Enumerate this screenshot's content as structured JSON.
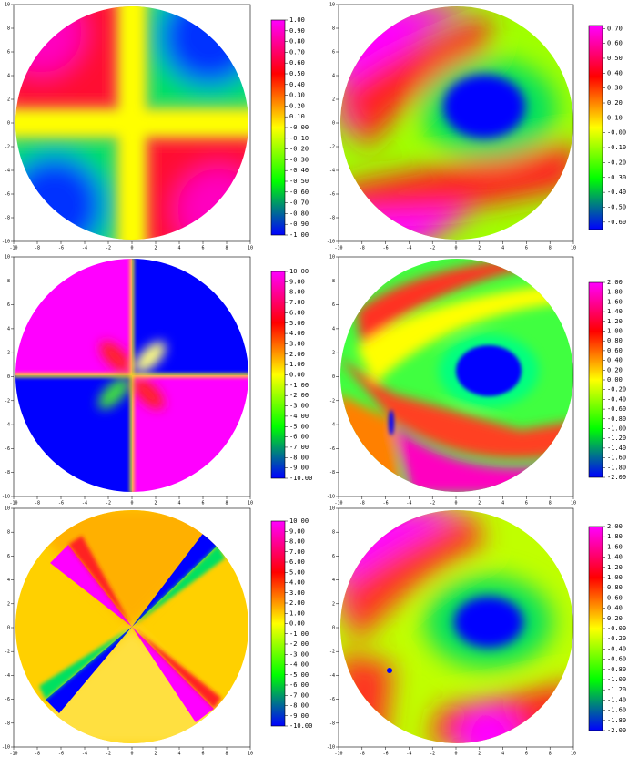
{
  "chart_data": [
    {
      "type": "heatmap",
      "xlim": [
        -10,
        10
      ],
      "ylim": [
        -10,
        10
      ],
      "xticks": [
        -10,
        -8,
        -6,
        -4,
        -2,
        0,
        2,
        4,
        6,
        8,
        10
      ],
      "yticks": [
        -10,
        -8,
        -6,
        -4,
        -2,
        0,
        2,
        4,
        6,
        8,
        10
      ],
      "colormap": [
        "#0000ff",
        "#00ff00",
        "#ffff00",
        "#ff0000",
        "#ff00ff"
      ],
      "clim": [
        -1,
        1
      ],
      "cbar_ticks": [
        {
          "value": 1,
          "label": "1.00"
        },
        {
          "value": 0.9,
          "label": "0.90"
        },
        {
          "value": 0.8,
          "label": "0.80"
        },
        {
          "value": 0.7,
          "label": "0.70"
        },
        {
          "value": 0.6,
          "label": "0.60"
        },
        {
          "value": 0.5,
          "label": "0.50"
        },
        {
          "value": 0.4,
          "label": "0.40"
        },
        {
          "value": 0.3,
          "label": "0.30"
        },
        {
          "value": 0.2,
          "label": "0.20"
        },
        {
          "value": 0.1,
          "label": "0.10"
        },
        {
          "value": 0,
          "label": "-0.00"
        },
        {
          "value": -0.1,
          "label": "-0.10"
        },
        {
          "value": -0.2,
          "label": "-0.20"
        },
        {
          "value": -0.3,
          "label": "-0.30"
        },
        {
          "value": -0.4,
          "label": "-0.40"
        },
        {
          "value": -0.5,
          "label": "-0.50"
        },
        {
          "value": -0.6,
          "label": "-0.60"
        },
        {
          "value": -0.7,
          "label": "-0.70"
        },
        {
          "value": -0.8,
          "label": "-0.80"
        },
        {
          "value": -0.9,
          "label": "-0.90"
        },
        {
          "value": -1,
          "label": "-1.00"
        }
      ]
    },
    {
      "type": "heatmap",
      "xlim": [
        -10,
        10
      ],
      "ylim": [
        -10,
        10
      ],
      "xticks": [
        -10,
        -8,
        -6,
        -4,
        -2,
        0,
        2,
        4,
        6,
        8,
        10
      ],
      "yticks": [
        -10,
        -8,
        -6,
        -4,
        -2,
        0,
        2,
        4,
        6,
        8,
        10
      ],
      "colormap": [
        "#0000ff",
        "#00ff00",
        "#ffff00",
        "#ff0000",
        "#ff00ff"
      ],
      "clim": [
        -0.65,
        0.72
      ],
      "cbar_ticks": [
        {
          "value": 0.7,
          "label": "0.70"
        },
        {
          "value": 0.6,
          "label": "0.60"
        },
        {
          "value": 0.5,
          "label": "0.50"
        },
        {
          "value": 0.4,
          "label": "0.40"
        },
        {
          "value": 0.3,
          "label": "0.30"
        },
        {
          "value": 0.2,
          "label": "0.20"
        },
        {
          "value": 0.1,
          "label": "0.10"
        },
        {
          "value": 0,
          "label": "-0.00"
        },
        {
          "value": -0.1,
          "label": "-0.10"
        },
        {
          "value": -0.2,
          "label": "-0.20"
        },
        {
          "value": -0.3,
          "label": "-0.30"
        },
        {
          "value": -0.4,
          "label": "-0.40"
        },
        {
          "value": -0.5,
          "label": "-0.50"
        },
        {
          "value": -0.6,
          "label": "-0.60"
        }
      ]
    },
    {
      "type": "heatmap",
      "xlim": [
        -10,
        10
      ],
      "ylim": [
        -10,
        10
      ],
      "xticks": [
        -10,
        -8,
        -6,
        -4,
        -2,
        0,
        2,
        4,
        6,
        8,
        10
      ],
      "yticks": [
        -10,
        -8,
        -6,
        -4,
        -2,
        0,
        2,
        4,
        6,
        8,
        10
      ],
      "colormap": [
        "#0000ff",
        "#00ff00",
        "#ffff00",
        "#ff0000",
        "#ff00ff"
      ],
      "clim": [
        -10,
        10
      ],
      "cbar_ticks": [
        {
          "value": 10,
          "label": "10.00"
        },
        {
          "value": 9,
          "label": "9.00"
        },
        {
          "value": 8,
          "label": "8.00"
        },
        {
          "value": 7,
          "label": "7.00"
        },
        {
          "value": 6,
          "label": "6.00"
        },
        {
          "value": 5,
          "label": "5.00"
        },
        {
          "value": 4,
          "label": "4.00"
        },
        {
          "value": 3,
          "label": "3.00"
        },
        {
          "value": 2,
          "label": "2.00"
        },
        {
          "value": 1,
          "label": "1.00"
        },
        {
          "value": 0,
          "label": "0.00"
        },
        {
          "value": -1,
          "label": "-1.00"
        },
        {
          "value": -2,
          "label": "-2.00"
        },
        {
          "value": -3,
          "label": "-3.00"
        },
        {
          "value": -4,
          "label": "-4.00"
        },
        {
          "value": -5,
          "label": "-5.00"
        },
        {
          "value": -6,
          "label": "-6.00"
        },
        {
          "value": -7,
          "label": "-7.00"
        },
        {
          "value": -8,
          "label": "-8.00"
        },
        {
          "value": -9,
          "label": "-9.00"
        },
        {
          "value": -10,
          "label": "-10.00"
        }
      ]
    },
    {
      "type": "heatmap",
      "xlim": [
        -10,
        10
      ],
      "ylim": [
        -10,
        10
      ],
      "xticks": [
        -10,
        -8,
        -6,
        -4,
        -2,
        0,
        2,
        4,
        6,
        8,
        10
      ],
      "yticks": [
        -10,
        -8,
        -6,
        -4,
        -2,
        0,
        2,
        4,
        6,
        8,
        10
      ],
      "colormap": [
        "#0000ff",
        "#00ff00",
        "#ffff00",
        "#ff0000",
        "#ff00ff"
      ],
      "clim": [
        -2,
        2
      ],
      "cbar_ticks": [
        {
          "value": 2,
          "label": "2.00"
        },
        {
          "value": 1.8,
          "label": "1.80"
        },
        {
          "value": 1.6,
          "label": "1.60"
        },
        {
          "value": 1.4,
          "label": "1.40"
        },
        {
          "value": 1.2,
          "label": "1.20"
        },
        {
          "value": 1,
          "label": "1.00"
        },
        {
          "value": 0.8,
          "label": "0.80"
        },
        {
          "value": 0.6,
          "label": "0.60"
        },
        {
          "value": 0.4,
          "label": "0.40"
        },
        {
          "value": 0.2,
          "label": "0.20"
        },
        {
          "value": 0,
          "label": "0.00"
        },
        {
          "value": -0.2,
          "label": "-0.20"
        },
        {
          "value": -0.4,
          "label": "-0.40"
        },
        {
          "value": -0.6,
          "label": "-0.60"
        },
        {
          "value": -0.8,
          "label": "-0.80"
        },
        {
          "value": -1,
          "label": "-1.00"
        },
        {
          "value": -1.2,
          "label": "-1.20"
        },
        {
          "value": -1.4,
          "label": "-1.40"
        },
        {
          "value": -1.6,
          "label": "-1.60"
        },
        {
          "value": -1.8,
          "label": "-1.80"
        },
        {
          "value": -2,
          "label": "-2.00"
        }
      ]
    },
    {
      "type": "heatmap",
      "xlim": [
        -10,
        10
      ],
      "ylim": [
        -10,
        10
      ],
      "xticks": [
        -10,
        -8,
        -6,
        -4,
        -2,
        0,
        2,
        4,
        6,
        8,
        10
      ],
      "yticks": [
        -10,
        -8,
        -6,
        -4,
        -2,
        0,
        2,
        4,
        6,
        8,
        10
      ],
      "colormap": [
        "#0000ff",
        "#00ff00",
        "#ffff00",
        "#ff0000",
        "#ff00ff"
      ],
      "clim": [
        -10,
        10
      ],
      "cbar_ticks": [
        {
          "value": 10,
          "label": "10.00"
        },
        {
          "value": 9,
          "label": "9.00"
        },
        {
          "value": 8,
          "label": "8.00"
        },
        {
          "value": 7,
          "label": "7.00"
        },
        {
          "value": 6,
          "label": "6.00"
        },
        {
          "value": 5,
          "label": "5.00"
        },
        {
          "value": 4,
          "label": "4.00"
        },
        {
          "value": 3,
          "label": "3.00"
        },
        {
          "value": 2,
          "label": "2.00"
        },
        {
          "value": 1,
          "label": "1.00"
        },
        {
          "value": 0,
          "label": "0.00"
        },
        {
          "value": -1,
          "label": "-1.00"
        },
        {
          "value": -2,
          "label": "-2.00"
        },
        {
          "value": -3,
          "label": "-3.00"
        },
        {
          "value": -4,
          "label": "-4.00"
        },
        {
          "value": -5,
          "label": "-5.00"
        },
        {
          "value": -6,
          "label": "-6.00"
        },
        {
          "value": -7,
          "label": "-7.00"
        },
        {
          "value": -8,
          "label": "-8.00"
        },
        {
          "value": -9,
          "label": "-9.00"
        },
        {
          "value": -10,
          "label": "-10.00"
        }
      ]
    },
    {
      "type": "heatmap",
      "xlim": [
        -10,
        10
      ],
      "ylim": [
        -10,
        10
      ],
      "xticks": [
        -10,
        -8,
        -6,
        -4,
        -2,
        0,
        2,
        4,
        6,
        8,
        10
      ],
      "yticks": [
        -10,
        -8,
        -6,
        -4,
        -2,
        0,
        2,
        4,
        6,
        8,
        10
      ],
      "colormap": [
        "#0000ff",
        "#00ff00",
        "#ffff00",
        "#ff0000",
        "#ff00ff"
      ],
      "clim": [
        -2,
        2
      ],
      "cbar_ticks": [
        {
          "value": 2,
          "label": "2.00"
        },
        {
          "value": 1.8,
          "label": "1.80"
        },
        {
          "value": 1.6,
          "label": "1.60"
        },
        {
          "value": 1.4,
          "label": "1.40"
        },
        {
          "value": 1.2,
          "label": "1.20"
        },
        {
          "value": 1,
          "label": "1.00"
        },
        {
          "value": 0.8,
          "label": "0.80"
        },
        {
          "value": 0.6,
          "label": "0.60"
        },
        {
          "value": 0.4,
          "label": "0.40"
        },
        {
          "value": 0.2,
          "label": "0.20"
        },
        {
          "value": 0,
          "label": "-0.00"
        },
        {
          "value": -0.2,
          "label": "-0.20"
        },
        {
          "value": -0.4,
          "label": "-0.40"
        },
        {
          "value": -0.6,
          "label": "-0.60"
        },
        {
          "value": -0.8,
          "label": "-0.80"
        },
        {
          "value": -1,
          "label": "-1.00"
        },
        {
          "value": -1.2,
          "label": "-1.20"
        },
        {
          "value": -1.4,
          "label": "-1.40"
        },
        {
          "value": -1.6,
          "label": "-1.60"
        },
        {
          "value": -1.8,
          "label": "-1.80"
        },
        {
          "value": -2,
          "label": "-2.00"
        }
      ]
    }
  ]
}
